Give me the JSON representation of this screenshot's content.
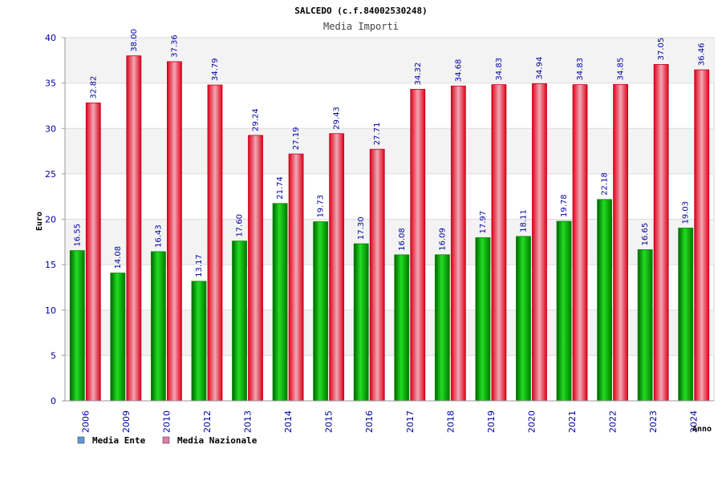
{
  "chart_data": {
    "type": "bar",
    "title": "SALCEDO (c.f.84002530248)",
    "subtitle": "Media Importi",
    "ylabel": "Euro",
    "xlabel": "Anno",
    "ylim": [
      0,
      40
    ],
    "yticks": [
      0,
      5,
      10,
      15,
      20,
      25,
      30,
      35,
      40
    ],
    "categories": [
      "2006",
      "2009",
      "2010",
      "2012",
      "2013",
      "2014",
      "2015",
      "2016",
      "2017",
      "2018",
      "2019",
      "2020",
      "2021",
      "2022",
      "2023",
      "2024"
    ],
    "series": [
      {
        "name": "Media Ente",
        "color": "#00b000",
        "legend_color": "#5b9bd5",
        "values": [
          16.55,
          14.08,
          16.43,
          13.17,
          17.6,
          21.74,
          19.73,
          17.3,
          16.08,
          16.09,
          17.97,
          18.11,
          19.78,
          22.18,
          16.65,
          19.03
        ],
        "labels": [
          "16.55",
          "14.08",
          "16.43",
          "13.17",
          "17.60",
          "21.74",
          "19.73",
          "17.30",
          "16.08",
          "16.09",
          "17.97",
          "18.11",
          "19.78",
          "22.18",
          "16.65",
          "19.03"
        ]
      },
      {
        "name": "Media Nazionale",
        "color": "#e8001c",
        "legend_color": "#e07ab0",
        "values": [
          32.82,
          38.0,
          37.36,
          34.79,
          29.24,
          27.19,
          29.43,
          27.71,
          34.32,
          34.68,
          34.83,
          34.94,
          34.83,
          34.85,
          37.05,
          36.46
        ],
        "labels": [
          "32.82",
          "38.00",
          "37.36",
          "34.79",
          "29.24",
          "27.19",
          "29.43",
          "27.71",
          "34.32",
          "34.68",
          "34.83",
          "34.94",
          "34.83",
          "34.85",
          "37.05",
          "36.46"
        ]
      }
    ],
    "grid": true,
    "legend_position": "bottom-left"
  }
}
